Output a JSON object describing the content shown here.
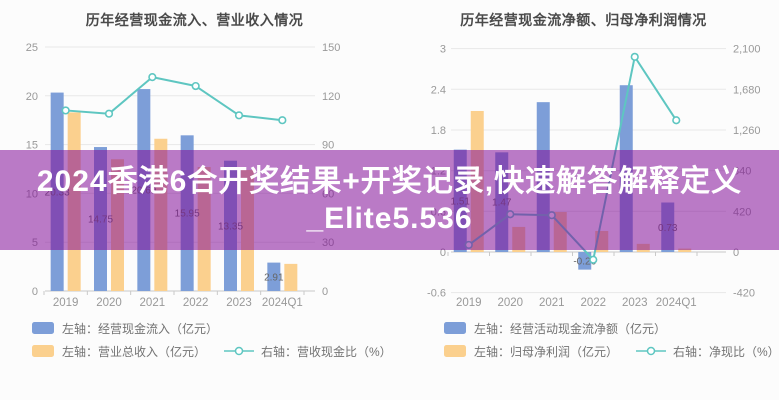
{
  "page": {
    "background": "#fcfcfc"
  },
  "overlay": {
    "line1": "2024香港6合开奖结果+开奖记录,快速解答解释定义",
    "line2": "_Elite5.536",
    "background": "rgba(131,15,153,0.55)",
    "text_color": "#ffffff"
  },
  "colors": {
    "bar_blue": "#7d9ed8",
    "bar_orange": "#fbd08e",
    "line_teal": "#5ec6c1",
    "grid": "#e8e8e8",
    "axis": "#c9c9c9",
    "tick_text": "#999999",
    "bar_label_text": "#666666",
    "title_text": "#4a4a4a",
    "legend_text": "#737373"
  },
  "chart_data": [
    {
      "type": "bar",
      "title": "历年经营现金流入、营业收入情况",
      "categories": [
        "2019",
        "2020",
        "2021",
        "2022",
        "2023",
        "2024Q1"
      ],
      "grid": true,
      "legend_position": "bottom-left",
      "left_axis": {
        "tick_values": [
          25,
          20,
          15,
          10,
          5,
          0
        ],
        "tick_labels": [
          "25",
          "20",
          "15",
          "10",
          "5",
          "0"
        ],
        "range": [
          0,
          25
        ]
      },
      "right_axis": {
        "tick_values": [
          150,
          120,
          90,
          60,
          30,
          0
        ],
        "tick_labels": [
          "150",
          "120",
          "90",
          "60",
          "30",
          "0"
        ],
        "range": [
          0,
          150
        ]
      },
      "series": [
        {
          "name": "左轴：经营现金流入（亿元）",
          "type": "bar",
          "axis": "left",
          "color": "#7d9ed8",
          "values": [
            20.33,
            14.75,
            20.69,
            15.95,
            13.35,
            2.91
          ],
          "labels": [
            "20.33",
            "14.75",
            "20.69",
            "15.95",
            "13.35",
            "2.91"
          ]
        },
        {
          "name": "左轴：营业总收入（亿元）",
          "type": "bar",
          "axis": "left",
          "color": "#fbd08e",
          "values": [
            18.3,
            13.5,
            15.6,
            12.7,
            12.4,
            2.78
          ],
          "labels": [
            null,
            null,
            null,
            null,
            null,
            null
          ]
        },
        {
          "name": "右轴：营收现金比（%）",
          "type": "line",
          "axis": "right",
          "color": "#5ec6c1",
          "values": [
            111,
            109,
            131.5,
            126,
            108,
            105
          ],
          "labels": [
            null,
            null,
            null,
            null,
            null,
            null
          ]
        }
      ]
    },
    {
      "type": "bar",
      "title": "历年经营现金流净额、归母净利润情况",
      "categories": [
        "2019",
        "2020",
        "2021",
        "2022",
        "2023",
        "2024Q1"
      ],
      "grid": true,
      "legend_position": "bottom-left",
      "left_axis": {
        "tick_values": [
          3,
          2.4,
          1.8,
          1.2,
          0.6,
          0,
          -0.6
        ],
        "tick_labels": [
          "3",
          "2.4",
          "1.8",
          "1.2",
          "0.6",
          "0",
          "-0.6"
        ],
        "range": [
          -0.6,
          3
        ]
      },
      "right_axis": {
        "tick_values": [
          2100,
          1680,
          1260,
          840,
          420,
          0,
          -420
        ],
        "tick_labels": [
          "2,100",
          "1,680",
          "1,260",
          "840",
          "420",
          "0",
          "-420"
        ],
        "range": [
          -420,
          2100
        ]
      },
      "series": [
        {
          "name": "左轴：经营活动现金流净额（亿元）",
          "type": "bar",
          "axis": "left",
          "color": "#7d9ed8",
          "values": [
            1.51,
            1.47,
            2.21,
            -0.26,
            2.46,
            0.73
          ],
          "labels": [
            "1.51",
            "1.47",
            null,
            "-0.26",
            null,
            "0.73"
          ]
        },
        {
          "name": "左轴：归母净利润（亿元）",
          "type": "bar",
          "axis": "left",
          "color": "#fbd08e",
          "values": [
            2.08,
            0.37,
            0.59,
            0.31,
            0.12,
            0.05
          ],
          "labels": [
            null,
            null,
            null,
            null,
            null,
            null
          ]
        },
        {
          "name": "右轴：净现比（%）",
          "type": "line",
          "axis": "right",
          "color": "#5ec6c1",
          "values": [
            73,
            390,
            380,
            -80,
            2015,
            1360
          ],
          "labels": [
            null,
            null,
            null,
            null,
            null,
            null
          ]
        }
      ]
    }
  ]
}
